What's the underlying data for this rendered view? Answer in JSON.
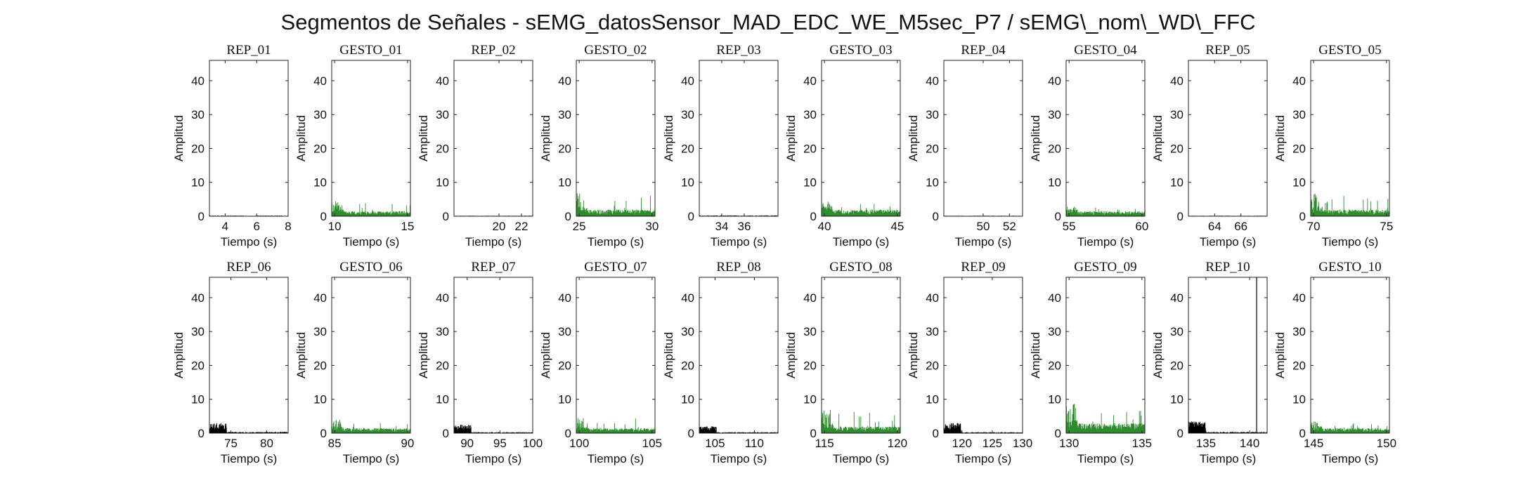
{
  "figure": {
    "title": "Segmentos de Señales - sEMG_datosSensor_MAD_EDC_WE_M5sec_P7 / sEMG\\_nom\\_WD\\_FFC"
  },
  "colors": {
    "rep": "#000000",
    "gesto": "#2e8b2e",
    "axis": "#222222"
  },
  "chart_data": {
    "type": "area",
    "layout": {
      "rows": 2,
      "cols": 10
    },
    "ylabel": "Amplitud",
    "xlabel": "Tiempo (s)",
    "ylim": [
      0,
      46
    ],
    "yticks": [
      0,
      10,
      20,
      30,
      40
    ],
    "panels": [
      {
        "title": "REP_01",
        "kind": "rep",
        "xlim": [
          3,
          8
        ],
        "xticks": [
          4,
          6,
          8
        ],
        "base": 0.25,
        "noise": 0.3
      },
      {
        "title": "GESTO_01",
        "kind": "gesto",
        "xlim": [
          9.8,
          15.2
        ],
        "xticks": [
          10,
          15
        ],
        "base": 1.5,
        "noise": 1.5,
        "peak": 4.5
      },
      {
        "title": "REP_02",
        "kind": "rep",
        "xlim": [
          16,
          23
        ],
        "xticks": [
          20,
          22
        ],
        "base": 0.2,
        "noise": 0.3
      },
      {
        "title": "GESTO_02",
        "kind": "gesto",
        "xlim": [
          24.8,
          30.2
        ],
        "xticks": [
          25,
          30
        ],
        "base": 2.0,
        "noise": 1.8,
        "peak": 7.0
      },
      {
        "title": "REP_03",
        "kind": "rep",
        "xlim": [
          32,
          39
        ],
        "xticks": [
          34,
          36
        ],
        "base": 0.3,
        "noise": 0.4
      },
      {
        "title": "GESTO_03",
        "kind": "gesto",
        "xlim": [
          39.8,
          45.2
        ],
        "xticks": [
          40,
          45
        ],
        "base": 2.0,
        "noise": 1.5,
        "peak": 4.0
      },
      {
        "title": "REP_04",
        "kind": "rep",
        "xlim": [
          47,
          53
        ],
        "xticks": [
          50,
          52
        ],
        "base": 0.2,
        "noise": 0.3
      },
      {
        "title": "GESTO_04",
        "kind": "gesto",
        "xlim": [
          54.8,
          60.2
        ],
        "xticks": [
          55,
          60
        ],
        "base": 1.5,
        "noise": 1.2,
        "peak": 3.0
      },
      {
        "title": "REP_05",
        "kind": "rep",
        "xlim": [
          62,
          68
        ],
        "xticks": [
          64,
          66
        ],
        "base": 0.2,
        "noise": 0.3
      },
      {
        "title": "GESTO_05",
        "kind": "gesto",
        "xlim": [
          69.8,
          75.2
        ],
        "xticks": [
          70,
          75
        ],
        "base": 2.0,
        "noise": 1.8,
        "peak": 7.0
      },
      {
        "title": "REP_06",
        "kind": "rep",
        "xlim": [
          72,
          83
        ],
        "xticks": [
          75,
          80
        ],
        "base": 0.5,
        "noise": 0.5,
        "early": 3.0
      },
      {
        "title": "GESTO_06",
        "kind": "gesto",
        "xlim": [
          84.8,
          90.2
        ],
        "xticks": [
          85,
          90
        ],
        "base": 1.5,
        "noise": 1.5,
        "peak": 4.0
      },
      {
        "title": "REP_07",
        "kind": "rep",
        "xlim": [
          88,
          100
        ],
        "xticks": [
          90,
          95,
          100
        ],
        "base": 0.4,
        "noise": 0.5,
        "early": 2.5
      },
      {
        "title": "GESTO_07",
        "kind": "gesto",
        "xlim": [
          99.8,
          105.2
        ],
        "xticks": [
          100,
          105
        ],
        "base": 1.5,
        "noise": 1.5,
        "peak": 4.5
      },
      {
        "title": "REP_08",
        "kind": "rep",
        "xlim": [
          103,
          113
        ],
        "xticks": [
          105,
          110
        ],
        "base": 0.4,
        "noise": 0.5,
        "early": 2.0
      },
      {
        "title": "GESTO_08",
        "kind": "gesto",
        "xlim": [
          114.8,
          120.2
        ],
        "xticks": [
          115,
          120
        ],
        "base": 2.0,
        "noise": 1.8,
        "peak": 7.0
      },
      {
        "title": "REP_09",
        "kind": "rep",
        "xlim": [
          117,
          130
        ],
        "xticks": [
          120,
          125,
          130
        ],
        "base": 0.4,
        "noise": 0.5,
        "early": 3.0
      },
      {
        "title": "GESTO_09",
        "kind": "gesto",
        "xlim": [
          129.8,
          135.2
        ],
        "xticks": [
          130,
          135
        ],
        "base": 3.0,
        "noise": 2.5,
        "peak": 9.0
      },
      {
        "title": "REP_10",
        "kind": "rep",
        "xlim": [
          133,
          142
        ],
        "xticks": [
          135,
          140
        ],
        "base": 0.5,
        "noise": 0.6,
        "early": 3.5,
        "spike_x": 140.8,
        "spike_y": 46
      },
      {
        "title": "GESTO_10",
        "kind": "gesto",
        "xlim": [
          144.8,
          150.2
        ],
        "xticks": [
          145,
          150
        ],
        "base": 1.5,
        "noise": 1.2,
        "peak": 3.5
      }
    ]
  }
}
